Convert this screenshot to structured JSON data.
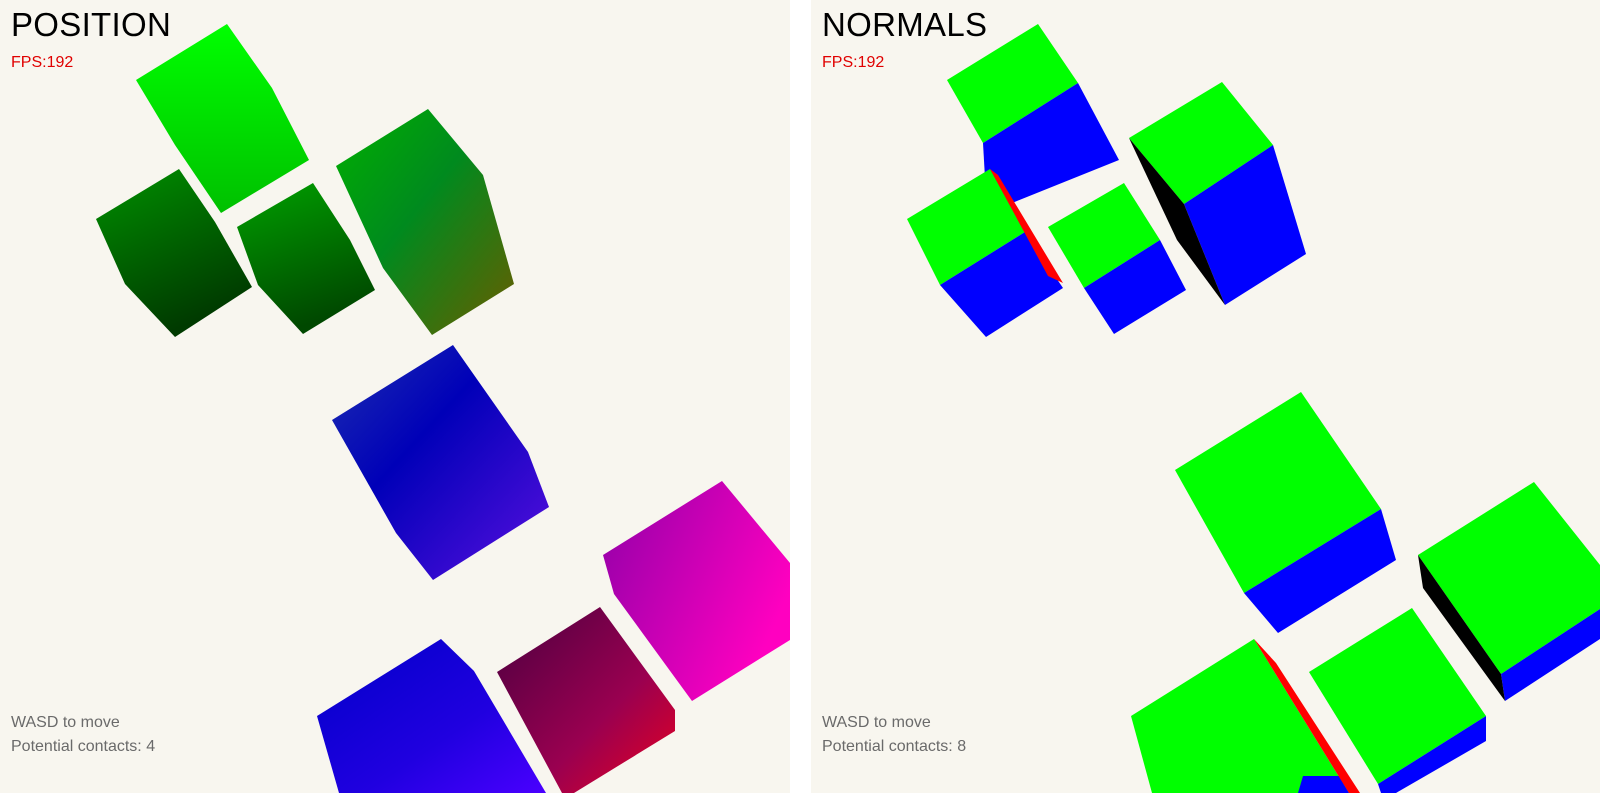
{
  "views": [
    {
      "id": "position",
      "title": "POSITION",
      "fps_label": "FPS:",
      "fps_value": "192",
      "hint": "WASD to move",
      "contacts_label": "Potential contacts: ",
      "contacts_value": "4"
    },
    {
      "id": "normals",
      "title": "NORMALS",
      "fps_label": "FPS:",
      "fps_value": "192",
      "hint": "WASD to move",
      "contacts_label": "Potential contacts: ",
      "contacts_value": "8"
    }
  ],
  "colors": {
    "viewport_background": "#f8f6ef",
    "fps_text": "#e00000",
    "hint_text": "#6a6a6a",
    "normal_top": "#00ff00",
    "normal_front": "#0000ff",
    "normal_side_red": "#ff0000",
    "normal_side_black": "#000000"
  }
}
